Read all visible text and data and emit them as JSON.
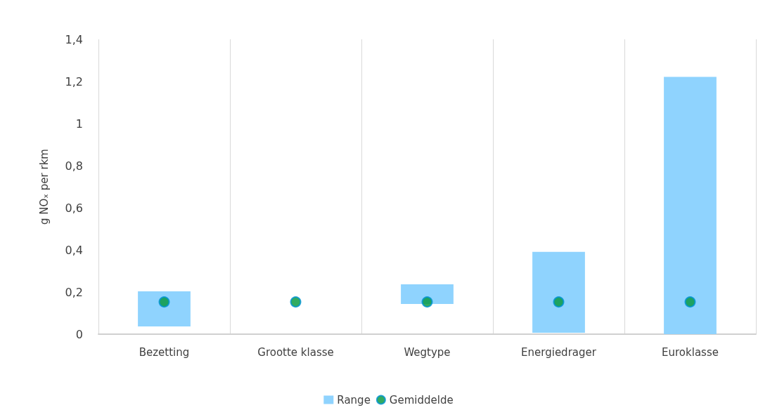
{
  "chart_data": {
    "type": "bar",
    "ylabel": "g NOₓ per rkm",
    "categories": [
      "Bezetting",
      "Grootte klasse",
      "Wegtype",
      "Energiedrager",
      "Euroklasse"
    ],
    "series": [
      {
        "name": "Range",
        "color": "#8fd3fe",
        "base": [
          0.037,
          null,
          0.143,
          0.007,
          0
        ],
        "values": [
          0.166,
          null,
          0.094,
          0.384,
          1.222
        ]
      },
      {
        "name": "Gemiddelde",
        "type": "scatter",
        "color": "#009639",
        "x": [
          "Bezetting",
          "Grootte klasse",
          "Wegtype",
          "Energiedrager",
          "Euroklasse"
        ],
        "values": [
          0.153,
          0.153,
          0.153,
          0.153,
          0.153
        ]
      }
    ],
    "ylim": [
      0,
      1.4
    ],
    "yticks": [
      0,
      {
        "value": 0.2,
        "label": "0,2"
      },
      {
        "value": 0.4,
        "label": "0,4"
      },
      {
        "value": 0.6,
        "label": "0,6"
      },
      {
        "value": 0.8,
        "label": "0,8"
      },
      1,
      {
        "value": 1.2,
        "label": "1,2"
      },
      {
        "value": 1.4,
        "label": "1,4"
      }
    ],
    "grid": "x",
    "legend": "bottom",
    "marker": "circle"
  }
}
